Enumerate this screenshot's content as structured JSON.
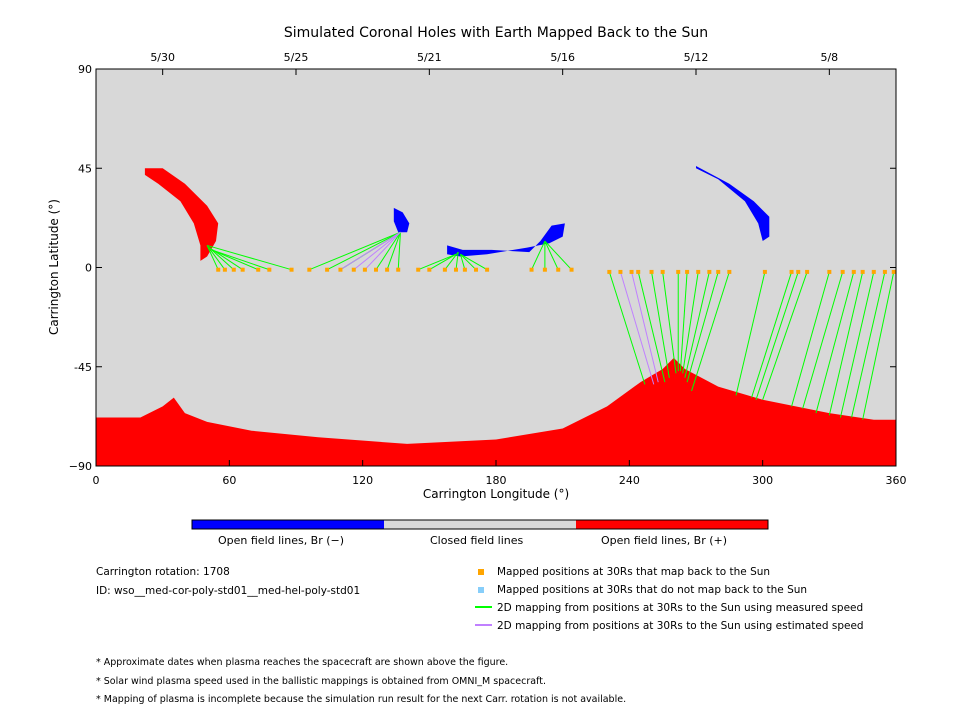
{
  "chart_data": {
    "type": "scatter",
    "title": "Simulated Coronal Holes with Earth Mapped Back to the Sun",
    "xlabel": "Carrington Longitude (°)",
    "ylabel": "Carrington Latitude (°)",
    "xlim": [
      0,
      360
    ],
    "ylim": [
      -90,
      90
    ],
    "x_ticks": [
      0,
      60,
      120,
      180,
      240,
      300,
      360
    ],
    "y_ticks": [
      -90,
      -45,
      0,
      45,
      90
    ],
    "y_tick_labels": [
      "−90",
      "-45",
      "0",
      "45",
      "90"
    ],
    "top_axis_dates": [
      {
        "label": "5/30",
        "lon": 30
      },
      {
        "label": "5/25",
        "lon": 90
      },
      {
        "label": "5/21",
        "lon": 150
      },
      {
        "label": "5/16",
        "lon": 210
      },
      {
        "label": "5/12",
        "lon": 270
      },
      {
        "label": "5/8",
        "lon": 330
      }
    ],
    "colors": {
      "background": "#d8d8d8",
      "open_negative": "#0000ff",
      "open_positive": "#ff0000",
      "closed": "#d8d8d8",
      "mapped_point": "#ffa500",
      "unmapped_point": "#87cefa",
      "measured_speed_line": "#00ff00",
      "estimated_speed_line": "#c080ff"
    },
    "colorbar": {
      "labels": [
        "Open field lines, Br (−)",
        "Closed field lines",
        "Open field lines, Br (+)"
      ]
    },
    "coronal_holes": [
      {
        "name": "south-polar",
        "sign": "+",
        "boundary": [
          [
            0,
            -68
          ],
          [
            20,
            -68
          ],
          [
            30,
            -63
          ],
          [
            35,
            -59
          ],
          [
            40,
            -66
          ],
          [
            50,
            -70
          ],
          [
            70,
            -74
          ],
          [
            100,
            -77
          ],
          [
            140,
            -80
          ],
          [
            180,
            -78
          ],
          [
            210,
            -73
          ],
          [
            230,
            -63
          ],
          [
            245,
            -52
          ],
          [
            255,
            -46
          ],
          [
            260,
            -41
          ],
          [
            265,
            -46
          ],
          [
            280,
            -54
          ],
          [
            300,
            -60
          ],
          [
            330,
            -66
          ],
          [
            350,
            -69
          ],
          [
            360,
            -69
          ],
          [
            360,
            -90
          ],
          [
            0,
            -90
          ]
        ]
      },
      {
        "name": "north-arm",
        "sign": "+",
        "boundary": [
          [
            22,
            45
          ],
          [
            30,
            45
          ],
          [
            40,
            38
          ],
          [
            50,
            28
          ],
          [
            55,
            20
          ],
          [
            54,
            12
          ],
          [
            50,
            5
          ],
          [
            47,
            3
          ],
          [
            47,
            10
          ],
          [
            44,
            20
          ],
          [
            38,
            30
          ],
          [
            28,
            38
          ],
          [
            22,
            42
          ]
        ]
      },
      {
        "name": "mid-neg-1",
        "sign": "−",
        "boundary": [
          [
            134,
            27
          ],
          [
            138,
            25
          ],
          [
            141,
            20
          ],
          [
            140,
            16
          ],
          [
            136,
            16
          ],
          [
            134,
            21
          ]
        ]
      },
      {
        "name": "mid-neg-2",
        "sign": "−",
        "boundary": [
          [
            158,
            10
          ],
          [
            165,
            8
          ],
          [
            178,
            8
          ],
          [
            195,
            7
          ],
          [
            200,
            12
          ],
          [
            205,
            19
          ],
          [
            211,
            20
          ],
          [
            210,
            14
          ],
          [
            204,
            11
          ],
          [
            194,
            9
          ],
          [
            176,
            6
          ],
          [
            164,
            5
          ],
          [
            158,
            6
          ]
        ]
      },
      {
        "name": "ne-neg",
        "sign": "−",
        "boundary": [
          [
            270,
            46
          ],
          [
            285,
            38
          ],
          [
            296,
            30
          ],
          [
            303,
            23
          ],
          [
            303,
            14
          ],
          [
            300,
            12
          ],
          [
            298,
            20
          ],
          [
            292,
            30
          ],
          [
            280,
            40
          ],
          [
            270,
            45
          ]
        ]
      }
    ],
    "mapped_points": [
      {
        "lon": 55,
        "lat": -1
      },
      {
        "lon": 58,
        "lat": -1
      },
      {
        "lon": 62,
        "lat": -1
      },
      {
        "lon": 66,
        "lat": -1
      },
      {
        "lon": 73,
        "lat": -1
      },
      {
        "lon": 78,
        "lat": -1
      },
      {
        "lon": 88,
        "lat": -1
      },
      {
        "lon": 96,
        "lat": -1
      },
      {
        "lon": 104,
        "lat": -1
      },
      {
        "lon": 110,
        "lat": -1
      },
      {
        "lon": 116,
        "lat": -1
      },
      {
        "lon": 121,
        "lat": -1
      },
      {
        "lon": 126,
        "lat": -1
      },
      {
        "lon": 131,
        "lat": -1
      },
      {
        "lon": 136,
        "lat": -1
      },
      {
        "lon": 145,
        "lat": -1
      },
      {
        "lon": 150,
        "lat": -1
      },
      {
        "lon": 157,
        "lat": -1
      },
      {
        "lon": 162,
        "lat": -1
      },
      {
        "lon": 166,
        "lat": -1
      },
      {
        "lon": 171,
        "lat": -1
      },
      {
        "lon": 176,
        "lat": -1
      },
      {
        "lon": 196,
        "lat": -1
      },
      {
        "lon": 202,
        "lat": -1
      },
      {
        "lon": 208,
        "lat": -1
      },
      {
        "lon": 214,
        "lat": -1
      },
      {
        "lon": 231,
        "lat": -2
      },
      {
        "lon": 236,
        "lat": -2
      },
      {
        "lon": 241,
        "lat": -2
      },
      {
        "lon": 244,
        "lat": -2
      },
      {
        "lon": 250,
        "lat": -2
      },
      {
        "lon": 255,
        "lat": -2
      },
      {
        "lon": 262,
        "lat": -2
      },
      {
        "lon": 266,
        "lat": -2
      },
      {
        "lon": 271,
        "lat": -2
      },
      {
        "lon": 276,
        "lat": -2
      },
      {
        "lon": 280,
        "lat": -2
      },
      {
        "lon": 285,
        "lat": -2
      },
      {
        "lon": 301,
        "lat": -2
      },
      {
        "lon": 313,
        "lat": -2
      },
      {
        "lon": 316,
        "lat": -2
      },
      {
        "lon": 320,
        "lat": -2
      },
      {
        "lon": 330,
        "lat": -2
      },
      {
        "lon": 336,
        "lat": -2
      },
      {
        "lon": 341,
        "lat": -2
      },
      {
        "lon": 345,
        "lat": -2
      },
      {
        "lon": 350,
        "lat": -2
      },
      {
        "lon": 355,
        "lat": -2
      },
      {
        "lon": 359,
        "lat": -2
      }
    ],
    "mapping_lines_measured": [
      {
        "from": [
          55,
          -1
        ],
        "to": [
          50,
          10
        ]
      },
      {
        "from": [
          58,
          -1
        ],
        "to": [
          50,
          10
        ]
      },
      {
        "from": [
          62,
          -1
        ],
        "to": [
          51,
          9
        ]
      },
      {
        "from": [
          66,
          -1
        ],
        "to": [
          51,
          9
        ]
      },
      {
        "from": [
          73,
          -1
        ],
        "to": [
          52,
          8
        ]
      },
      {
        "from": [
          78,
          -1
        ],
        "to": [
          52,
          8
        ]
      },
      {
        "from": [
          88,
          -1
        ],
        "to": [
          50,
          10
        ]
      },
      {
        "from": [
          96,
          -1
        ],
        "to": [
          137,
          16
        ]
      },
      {
        "from": [
          104,
          -1
        ],
        "to": [
          137,
          16
        ]
      },
      {
        "from": [
          110,
          -1
        ],
        "to": [
          137,
          16
        ]
      },
      {
        "from": [
          126,
          -1
        ],
        "to": [
          137,
          16
        ]
      },
      {
        "from": [
          131,
          -1
        ],
        "to": [
          137,
          16
        ]
      },
      {
        "from": [
          136,
          -1
        ],
        "to": [
          137,
          16
        ]
      },
      {
        "from": [
          145,
          -1
        ],
        "to": [
          162,
          6
        ]
      },
      {
        "from": [
          150,
          -1
        ],
        "to": [
          162,
          6
        ]
      },
      {
        "from": [
          157,
          -1
        ],
        "to": [
          163,
          7
        ]
      },
      {
        "from": [
          162,
          -1
        ],
        "to": [
          163,
          7
        ]
      },
      {
        "from": [
          166,
          -1
        ],
        "to": [
          164,
          6
        ]
      },
      {
        "from": [
          171,
          -1
        ],
        "to": [
          164,
          6
        ]
      },
      {
        "from": [
          176,
          -1
        ],
        "to": [
          164,
          6
        ]
      },
      {
        "from": [
          196,
          -1
        ],
        "to": [
          202,
          12
        ]
      },
      {
        "from": [
          202,
          -1
        ],
        "to": [
          202,
          12
        ]
      },
      {
        "from": [
          208,
          -1
        ],
        "to": [
          202,
          12
        ]
      },
      {
        "from": [
          214,
          -1
        ],
        "to": [
          202,
          12
        ]
      },
      {
        "from": [
          231,
          -2
        ],
        "to": [
          247,
          -53
        ]
      },
      {
        "from": [
          244,
          -2
        ],
        "to": [
          256,
          -52
        ]
      },
      {
        "from": [
          250,
          -2
        ],
        "to": [
          258,
          -50
        ]
      },
      {
        "from": [
          255,
          -2
        ],
        "to": [
          261,
          -48
        ]
      },
      {
        "from": [
          262,
          -2
        ],
        "to": [
          262,
          -47
        ]
      },
      {
        "from": [
          266,
          -2
        ],
        "to": [
          263,
          -47
        ]
      },
      {
        "from": [
          271,
          -2
        ],
        "to": [
          264,
          -48
        ]
      },
      {
        "from": [
          276,
          -2
        ],
        "to": [
          265,
          -50
        ]
      },
      {
        "from": [
          280,
          -2
        ],
        "to": [
          266,
          -52
        ]
      },
      {
        "from": [
          285,
          -2
        ],
        "to": [
          268,
          -56
        ]
      },
      {
        "from": [
          301,
          -2
        ],
        "to": [
          288,
          -58
        ]
      },
      {
        "from": [
          313,
          -2
        ],
        "to": [
          295,
          -59
        ]
      },
      {
        "from": [
          316,
          -2
        ],
        "to": [
          297,
          -60
        ]
      },
      {
        "from": [
          320,
          -2
        ],
        "to": [
          300,
          -60
        ]
      },
      {
        "from": [
          330,
          -2
        ],
        "to": [
          313,
          -63
        ]
      },
      {
        "from": [
          336,
          -2
        ],
        "to": [
          318,
          -64
        ]
      },
      {
        "from": [
          341,
          -2
        ],
        "to": [
          324,
          -66
        ]
      },
      {
        "from": [
          345,
          -2
        ],
        "to": [
          330,
          -67
        ]
      },
      {
        "from": [
          350,
          -2
        ],
        "to": [
          335,
          -68
        ]
      },
      {
        "from": [
          355,
          -2
        ],
        "to": [
          340,
          -68
        ]
      },
      {
        "from": [
          359,
          -2
        ],
        "to": [
          345,
          -69
        ]
      }
    ],
    "mapping_lines_estimated": [
      {
        "from": [
          110,
          -1
        ],
        "to": [
          137,
          16
        ]
      },
      {
        "from": [
          116,
          -1
        ],
        "to": [
          137,
          16
        ]
      },
      {
        "from": [
          121,
          -1
        ],
        "to": [
          137,
          16
        ]
      },
      {
        "from": [
          236,
          -2
        ],
        "to": [
          251,
          -53
        ]
      },
      {
        "from": [
          241,
          -2
        ],
        "to": [
          253,
          -52
        ]
      }
    ]
  },
  "legend": {
    "left_info": {
      "carrington": "Carrington rotation: 1708",
      "id": "ID: wso__med-cor-poly-std01__med-hel-poly-std01"
    },
    "items": [
      {
        "label": "Mapped positions at 30Rs that map back to the Sun"
      },
      {
        "label": "Mapped positions at 30Rs that do not map back to the Sun"
      },
      {
        "label": "2D mapping from positions at 30Rs to the Sun using measured speed"
      },
      {
        "label": "2D mapping from positions at 30Rs to the Sun using estimated speed"
      }
    ]
  },
  "notes": [
    "* Approximate dates when plasma reaches the spacecraft are shown above the figure.",
    "* Solar wind plasma speed used in the ballistic mappings is obtained from OMNI_M spacecraft.",
    "* Mapping of plasma is incomplete because the simulation run result for the next Carr. rotation is not available."
  ]
}
